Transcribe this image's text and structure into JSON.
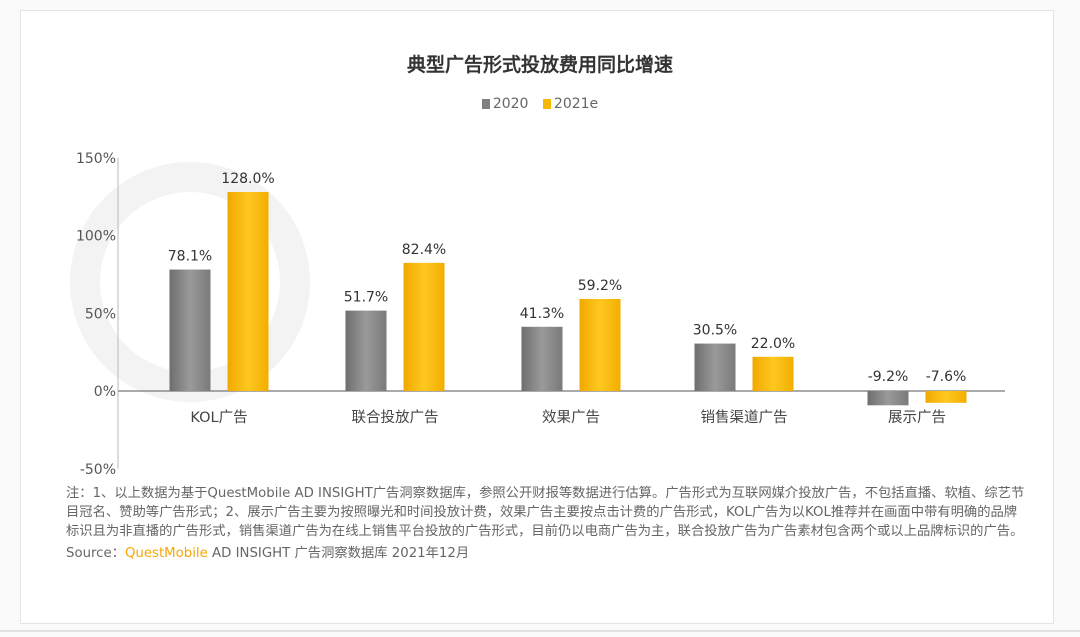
{
  "chart_data": {
    "type": "bar",
    "title": "典型广告形式投放费用同比增速",
    "categories": [
      "KOL广告",
      "联合投放广告",
      "效果广告",
      "销售渠道广告",
      "展示广告"
    ],
    "series": [
      {
        "name": "2020",
        "values": [
          78.1,
          51.7,
          41.3,
          30.5,
          -9.2
        ],
        "labels": [
          "78.1%",
          "51.7%",
          "41.3%",
          "30.5%",
          "-9.2%"
        ],
        "color": "#8a8a8a"
      },
      {
        "name": "2021e",
        "values": [
          128.0,
          82.4,
          59.2,
          22.0,
          -7.6
        ],
        "labels": [
          "128.0%",
          "82.4%",
          "59.2%",
          "22.0%",
          "-7.6%"
        ],
        "color": "#f7b800"
      }
    ],
    "ylim": [
      -50,
      150
    ],
    "yticks": [
      150,
      100,
      50,
      0,
      -50
    ],
    "ytick_labels": [
      "150%",
      "100%",
      "50%",
      "0%",
      "-50%"
    ],
    "xlabel": "",
    "ylabel": "",
    "legend_position": "top-center",
    "grid": false
  },
  "watermark": "QUEST MOBILE",
  "note": "注：1、以上数据为基于QuestMobile AD INSIGHT广告洞察数据库，参照公开财报等数据进行估算。广告形式为互联网媒介投放广告，不包括直播、软植、综艺节目冠名、赞助等广告形式；2、展示广告主要为按照曝光和时间投放计费，效果广告主要按点击计费的广告形式，KOL广告为以KOL推荐并在画面中带有明确的品牌标识且为非直播的广告形式，销售渠道广告为在线上销售平台投放的广告形式，目前仍以电商广告为主，联合投放广告为广告素材包含两个或以上品牌标识的广告。",
  "source": {
    "label": "Source：",
    "brand": "QuestMobile",
    "rest": "AD INSIGHT 广告洞察数据库 2021年12月"
  }
}
